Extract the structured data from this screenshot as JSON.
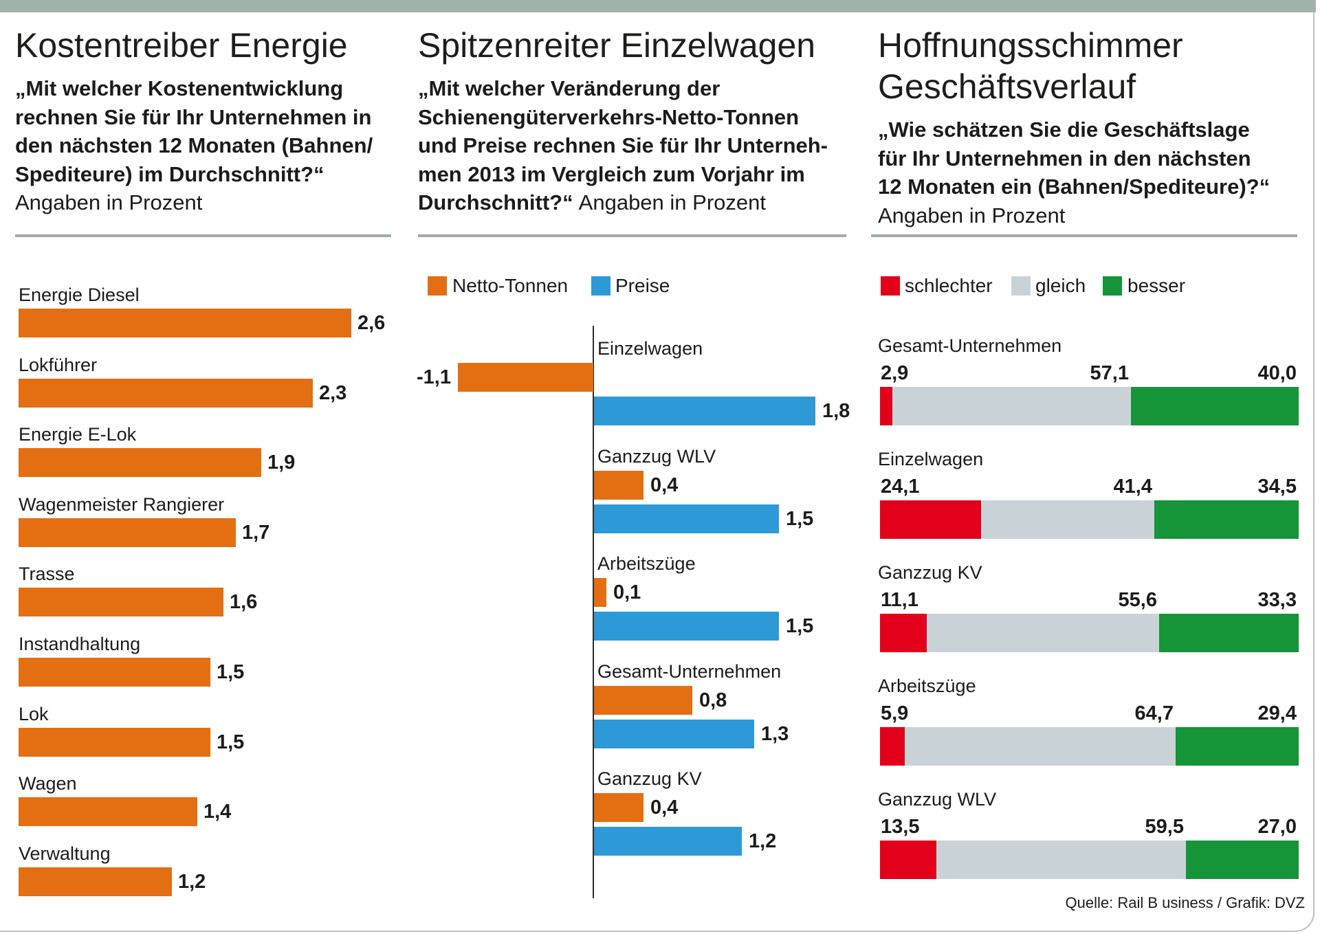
{
  "chart_data": [
    {
      "type": "bar",
      "orientation": "horizontal",
      "title": "Kostentreiber Energie",
      "subtitle_lines": [
        "„Mit welcher Kostenentwicklung",
        "rechnen Sie für Ihr Unternehmen in",
        "den nächsten 12 Monaten (Bahnen/",
        "Spediteure) im Durchschnitt?“"
      ],
      "note": "Angaben in Prozent",
      "categories": [
        "Energie Diesel",
        "Lokführer",
        "Energie E-Lok",
        "Wagenmeister Rangierer",
        "Trasse",
        "Instandhaltung",
        "Lok",
        "Wagen",
        "Verwaltung"
      ],
      "values": [
        2.6,
        2.3,
        1.9,
        1.7,
        1.6,
        1.5,
        1.5,
        1.4,
        1.2
      ],
      "data_labels": [
        "2,6",
        "2,3",
        "1,9",
        "1,7",
        "1,6",
        "1,5",
        "1,5",
        "1,4",
        "1,2"
      ],
      "color": "#e36f12",
      "grid": false
    },
    {
      "type": "bar",
      "orientation": "horizontal",
      "title": "Spitzenreiter Einzelwagen",
      "subtitle_lines": [
        "„Mit welcher Veränderung der",
        "Schienengüterverkehrs-Netto-Tonnen",
        "und Preise rechnen Sie für Ihr Unterneh-",
        "men 2013 im Vergleich zum Vorjahr im",
        "Durchschnitt?“"
      ],
      "note": "Angaben in Prozent",
      "categories": [
        "Einzelwagen",
        "Ganzzug WLV",
        "Arbeitszüge",
        "Gesamt-Unternehmen",
        "Ganzzug KV"
      ],
      "series": [
        {
          "name": "Netto-Tonnen",
          "color": "#e36f12",
          "values": [
            -1.1,
            0.4,
            0.1,
            0.8,
            0.4
          ],
          "data_labels": [
            "-1,1",
            "0,4",
            "0,1",
            "0,8",
            "0,4"
          ]
        },
        {
          "name": "Preise",
          "color": "#2d9ad7",
          "values": [
            1.8,
            1.5,
            1.5,
            1.3,
            1.2
          ],
          "data_labels": [
            "1,8",
            "1,5",
            "1,5",
            "1,3",
            "1,2"
          ]
        }
      ],
      "legend": "top-left",
      "grid": false
    },
    {
      "type": "bar",
      "orientation": "horizontal",
      "stacked": true,
      "title": "Hoffnungsschimmer Geschäftsverlauf",
      "subtitle_lines": [
        "„Wie schätzen Sie die Geschäftslage",
        "für Ihr Unternehmen in den nächsten",
        "12 Monaten ein (Bahnen/Spediteure)?“"
      ],
      "note": "Angaben in Prozent",
      "categories": [
        "Gesamt-Unternehmen",
        "Einzelwagen",
        "Ganzzug KV",
        "Arbeitszüge",
        "Ganzzug WLV"
      ],
      "series": [
        {
          "name": "schlechter",
          "color": "#e2001a",
          "values": [
            2.9,
            24.1,
            11.1,
            5.9,
            13.5
          ],
          "data_labels": [
            "2,9",
            "24,1",
            "11,1",
            "5,9",
            "13,5"
          ]
        },
        {
          "name": "gleich",
          "color": "#c9d3d7",
          "values": [
            57.1,
            41.4,
            55.6,
            64.7,
            59.5
          ],
          "data_labels": [
            "57,1",
            "41,4",
            "55,6",
            "64,7",
            "59,5"
          ]
        },
        {
          "name": "besser",
          "color": "#169438",
          "values": [
            40.0,
            34.5,
            33.3,
            29.4,
            27.0
          ],
          "data_labels": [
            "40,0",
            "34,5",
            "33,3",
            "29,4",
            "27,0"
          ]
        }
      ],
      "legend": "top-left",
      "grid": false
    }
  ],
  "source": "Quelle: Rail B usiness / Grafik: DVZ"
}
